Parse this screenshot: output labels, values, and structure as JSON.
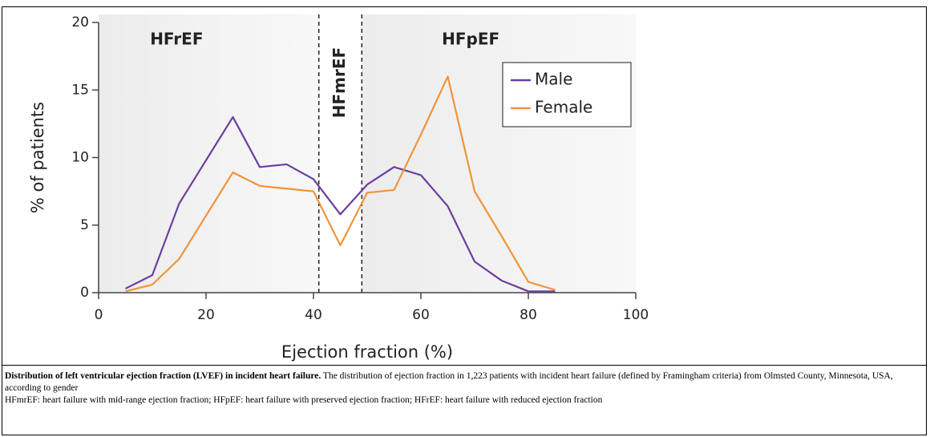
{
  "chart_data": {
    "type": "line",
    "xlabel": "Ejection fraction (%)",
    "ylabel": "% of patients",
    "x": [
      5,
      10,
      15,
      20,
      25,
      30,
      35,
      40,
      45,
      50,
      55,
      60,
      65,
      70,
      75,
      80,
      85
    ],
    "series": [
      {
        "name": "Male",
        "color": "#6b3fa0",
        "values": [
          0.3,
          1.3,
          6.6,
          9.8,
          13.0,
          9.3,
          9.5,
          8.4,
          5.8,
          8.0,
          9.3,
          8.7,
          6.4,
          2.3,
          0.9,
          0.1,
          0.1
        ]
      },
      {
        "name": "Female",
        "color": "#f0943a",
        "values": [
          0.1,
          0.6,
          2.5,
          5.7,
          8.9,
          7.9,
          7.7,
          7.5,
          3.5,
          7.4,
          7.6,
          11.7,
          16.0,
          7.5,
          4.2,
          0.8,
          0.2
        ]
      }
    ],
    "regions": [
      {
        "label": "HFrEF",
        "range": [
          0,
          41
        ],
        "shaded": true
      },
      {
        "label": "HFmrEF",
        "range": [
          41,
          49
        ],
        "shaded": false
      },
      {
        "label": "HFpEF",
        "range": [
          49,
          100
        ],
        "shaded": true
      }
    ],
    "xlim": [
      0,
      100
    ],
    "xticks": [
      0,
      20,
      40,
      60,
      80,
      100
    ],
    "ylim": [
      0,
      20
    ],
    "yticks": [
      0,
      5,
      10,
      15,
      20
    ],
    "legend": "upper right"
  },
  "caption": {
    "title": "Distribution of left ventricular ejection fraction (LVEF) in incident heart failure.",
    "text": " The distribution of ejection fraction in 1,223 patients with incident heart failure (defined by Framingham criteria) from Olmsted County, Minnesota, USA, according to gender",
    "notes": "HFmrEF: heart failure with mid-range ejection fraction; HFpEF: heart failure with preserved ejection fraction; HFrEF: heart failure with reduced ejection fraction"
  }
}
